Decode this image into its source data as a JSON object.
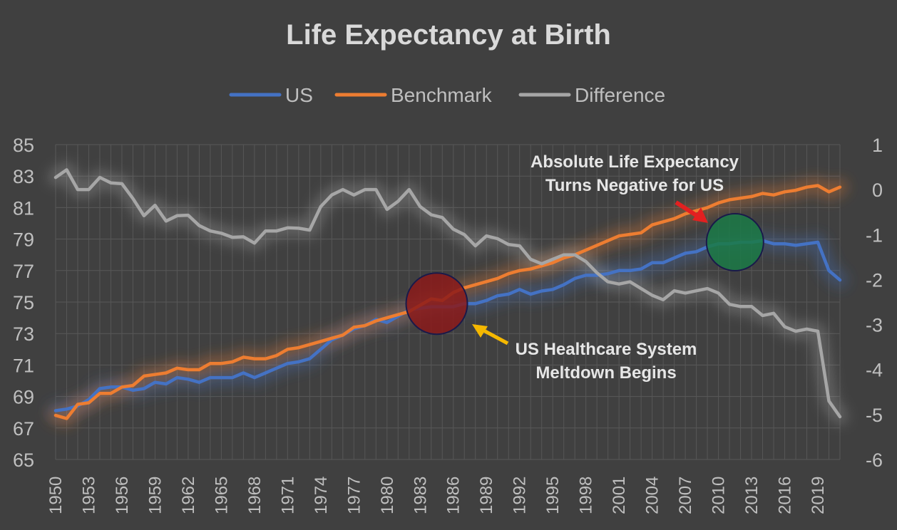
{
  "chart_data": {
    "type": "line",
    "title": "Life Expectancy at Birth",
    "xlabel": "",
    "ylabel": "",
    "x_range": [
      1950,
      2021
    ],
    "ylim": [
      65,
      85
    ],
    "y2lim": [
      -6,
      1
    ],
    "y_ticks": [
      65,
      67,
      69,
      71,
      73,
      75,
      77,
      79,
      81,
      83,
      85
    ],
    "y2_ticks": [
      -6,
      -5,
      -4,
      -3,
      -2,
      -1,
      0,
      1
    ],
    "x_ticks": [
      1950,
      1953,
      1956,
      1959,
      1962,
      1965,
      1968,
      1971,
      1974,
      1977,
      1980,
      1983,
      1986,
      1989,
      1992,
      1995,
      1998,
      2001,
      2004,
      2007,
      2010,
      2013,
      2016,
      2019
    ],
    "grid": true,
    "legend_position": "top-center",
    "x": [
      1950,
      1951,
      1952,
      1953,
      1954,
      1955,
      1956,
      1957,
      1958,
      1959,
      1960,
      1961,
      1962,
      1963,
      1964,
      1965,
      1966,
      1967,
      1968,
      1969,
      1970,
      1971,
      1972,
      1973,
      1974,
      1975,
      1976,
      1977,
      1978,
      1979,
      1980,
      1981,
      1982,
      1983,
      1984,
      1985,
      1986,
      1987,
      1988,
      1989,
      1990,
      1991,
      1992,
      1993,
      1994,
      1995,
      1996,
      1997,
      1998,
      1999,
      2000,
      2001,
      2002,
      2003,
      2004,
      2005,
      2006,
      2007,
      2008,
      2009,
      2010,
      2011,
      2012,
      2013,
      2014,
      2015,
      2016,
      2017,
      2018,
      2019,
      2020,
      2021
    ],
    "series": [
      {
        "name": "US",
        "color": "#4472c4",
        "axis": "left",
        "values": [
          68.1,
          68.2,
          68.4,
          68.8,
          69.5,
          69.6,
          69.6,
          69.4,
          69.5,
          69.9,
          69.8,
          70.2,
          70.1,
          69.9,
          70.2,
          70.2,
          70.2,
          70.5,
          70.2,
          70.5,
          70.8,
          71.1,
          71.2,
          71.4,
          72.0,
          72.6,
          72.9,
          73.3,
          73.5,
          73.9,
          73.7,
          74.1,
          74.5,
          74.6,
          74.7,
          74.7,
          74.7,
          74.9,
          74.9,
          75.1,
          75.4,
          75.5,
          75.8,
          75.5,
          75.7,
          75.8,
          76.1,
          76.5,
          76.7,
          76.7,
          76.8,
          77.0,
          77.0,
          77.1,
          77.5,
          77.5,
          77.8,
          78.1,
          78.2,
          78.5,
          78.7,
          78.7,
          78.8,
          78.8,
          78.9,
          78.7,
          78.7,
          78.6,
          78.7,
          78.8,
          77.0,
          76.4
        ]
      },
      {
        "name": "Benchmark",
        "color": "#ed7d31",
        "axis": "left",
        "values": [
          67.8,
          67.6,
          68.5,
          68.6,
          69.2,
          69.2,
          69.6,
          69.7,
          70.3,
          70.4,
          70.5,
          70.8,
          70.7,
          70.7,
          71.1,
          71.1,
          71.2,
          71.5,
          71.4,
          71.4,
          71.6,
          72.0,
          72.1,
          72.3,
          72.5,
          72.7,
          72.9,
          73.4,
          73.5,
          73.8,
          74.0,
          74.2,
          74.4,
          74.8,
          75.2,
          75.1,
          75.6,
          75.9,
          76.1,
          76.3,
          76.5,
          76.8,
          77.0,
          77.1,
          77.3,
          77.5,
          77.8,
          78.0,
          78.3,
          78.6,
          78.9,
          79.2,
          79.3,
          79.4,
          79.9,
          80.1,
          80.3,
          80.6,
          80.8,
          81.0,
          81.3,
          81.5,
          81.6,
          81.7,
          81.9,
          81.8,
          82.0,
          82.1,
          82.3,
          82.4,
          82.0,
          82.3
        ]
      },
      {
        "name": "Difference",
        "color": "#a6a6a6",
        "axis": "right",
        "values": [
          0.27,
          0.44,
          0.0,
          0.0,
          0.27,
          0.15,
          0.13,
          -0.2,
          -0.58,
          -0.35,
          -0.7,
          -0.58,
          -0.57,
          -0.8,
          -0.92,
          -0.97,
          -1.06,
          -1.05,
          -1.19,
          -0.92,
          -0.92,
          -0.85,
          -0.86,
          -0.9,
          -0.38,
          -0.12,
          0.0,
          -0.12,
          0.0,
          0.0,
          -0.44,
          -0.26,
          0.0,
          -0.38,
          -0.56,
          -0.62,
          -0.88,
          -1.0,
          -1.25,
          -1.03,
          -1.09,
          -1.22,
          -1.25,
          -1.55,
          -1.65,
          -1.55,
          -1.45,
          -1.45,
          -1.6,
          -1.85,
          -2.05,
          -2.1,
          -2.05,
          -2.2,
          -2.35,
          -2.45,
          -2.25,
          -2.3,
          -2.25,
          -2.2,
          -2.3,
          -2.55,
          -2.6,
          -2.6,
          -2.8,
          -2.75,
          -3.05,
          -3.15,
          -3.1,
          -3.15,
          -4.7,
          -5.05
        ]
      }
    ],
    "annotations": [
      {
        "id": "absolute",
        "lines": [
          "Absolute Life Expectancy",
          "Turns Negative for US"
        ],
        "arrow_color": "#e32020",
        "marker_color": "#1b7a47",
        "year": 2011.5,
        "value": 78.8
      },
      {
        "id": "meltdown",
        "lines": [
          "US Healthcare System",
          "Meltdown Begins"
        ],
        "arrow_color": "#f5b800",
        "marker_color": "#8b1a1a",
        "year": 1984.5,
        "value": 74.9
      }
    ]
  }
}
